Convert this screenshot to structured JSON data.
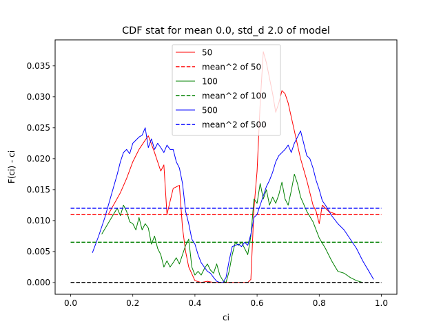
{
  "chart_data": {
    "type": "line",
    "title": "CDF stat for mean 0.0, std_d 2.0 of model",
    "xlabel": "ci",
    "ylabel": "F(ci) - ci",
    "xlim": [
      -0.05,
      1.05
    ],
    "ylim": [
      -0.0019,
      0.0392
    ],
    "xticks": [
      0.0,
      0.2,
      0.4,
      0.6,
      0.8,
      1.0
    ],
    "xtick_labels": [
      "0.0",
      "0.2",
      "0.4",
      "0.6",
      "0.8",
      "1.0"
    ],
    "yticks": [
      0.0,
      0.005,
      0.01,
      0.015,
      0.02,
      0.025,
      0.03,
      0.035
    ],
    "ytick_labels": [
      "0.000",
      "0.005",
      "0.010",
      "0.015",
      "0.020",
      "0.025",
      "0.030",
      "0.035"
    ],
    "legend_position": "top-center",
    "series": [
      {
        "name": "50",
        "color": "#ff0000",
        "style": "solid",
        "x": [
          0.12,
          0.16,
          0.18,
          0.2,
          0.22,
          0.24,
          0.25,
          0.27,
          0.29,
          0.3,
          0.31,
          0.33,
          0.35,
          0.36,
          0.37,
          0.38,
          0.4,
          0.42,
          0.44,
          0.46,
          0.48,
          0.5,
          0.52,
          0.54,
          0.56,
          0.57,
          0.58,
          0.59,
          0.6,
          0.61,
          0.62,
          0.63,
          0.64,
          0.65,
          0.66,
          0.67,
          0.68,
          0.69,
          0.7,
          0.72,
          0.74,
          0.76,
          0.78,
          0.79,
          0.8,
          0.81,
          0.83,
          0.86
        ],
        "y": [
          0.0109,
          0.0145,
          0.0168,
          0.0195,
          0.0215,
          0.023,
          0.0237,
          0.021,
          0.018,
          0.019,
          0.011,
          0.0152,
          0.0157,
          0.0088,
          0.005,
          0.0025,
          0.0003,
          0.0,
          0.0002,
          0.0,
          0.0,
          0.0,
          0.0,
          0.0,
          0.0,
          0.0,
          0.0005,
          0.012,
          0.018,
          0.029,
          0.0373,
          0.0355,
          0.033,
          0.0305,
          0.0275,
          0.029,
          0.031,
          0.0305,
          0.029,
          0.0245,
          0.02,
          0.0165,
          0.0125,
          0.0115,
          0.0095,
          0.0125,
          0.0115,
          0.0109
        ]
      },
      {
        "name": "mean^2 of 50",
        "color": "#ff0000",
        "style": "dashed",
        "x": [
          0.0,
          1.0
        ],
        "y": [
          0.011,
          0.011
        ]
      },
      {
        "name": "100",
        "color": "#008000",
        "style": "solid",
        "x": [
          0.1,
          0.12,
          0.14,
          0.15,
          0.16,
          0.17,
          0.18,
          0.19,
          0.2,
          0.21,
          0.22,
          0.23,
          0.24,
          0.25,
          0.26,
          0.27,
          0.28,
          0.29,
          0.3,
          0.31,
          0.32,
          0.33,
          0.34,
          0.35,
          0.36,
          0.37,
          0.38,
          0.39,
          0.4,
          0.41,
          0.42,
          0.43,
          0.44,
          0.45,
          0.46,
          0.47,
          0.48,
          0.49,
          0.5,
          0.51,
          0.52,
          0.53,
          0.54,
          0.55,
          0.56,
          0.57,
          0.58,
          0.59,
          0.6,
          0.61,
          0.62,
          0.63,
          0.64,
          0.65,
          0.66,
          0.67,
          0.68,
          0.69,
          0.7,
          0.71,
          0.72,
          0.73,
          0.74,
          0.76,
          0.78,
          0.8,
          0.82,
          0.84,
          0.86,
          0.88,
          0.9,
          0.92,
          0.94
        ],
        "y": [
          0.0078,
          0.0095,
          0.0112,
          0.012,
          0.0108,
          0.0125,
          0.0115,
          0.0098,
          0.0095,
          0.0085,
          0.0105,
          0.0085,
          0.0095,
          0.0088,
          0.0062,
          0.0075,
          0.0055,
          0.0045,
          0.0025,
          0.0035,
          0.0025,
          0.0032,
          0.004,
          0.003,
          0.0045,
          0.006,
          0.007,
          0.0025,
          0.0012,
          0.0018,
          0.0012,
          0.0022,
          0.003,
          0.002,
          0.0015,
          0.003,
          0.0012,
          0.0003,
          0.0,
          0.0018,
          0.0045,
          0.0065,
          0.006,
          0.0065,
          0.0055,
          0.0045,
          0.0075,
          0.0135,
          0.0128,
          0.016,
          0.0135,
          0.015,
          0.0125,
          0.0138,
          0.0128,
          0.0142,
          0.0162,
          0.0135,
          0.0125,
          0.0148,
          0.0175,
          0.016,
          0.0138,
          0.0115,
          0.0098,
          0.0072,
          0.0055,
          0.0035,
          0.0018,
          0.0015,
          0.0008,
          0.0003,
          0.0
        ]
      },
      {
        "name": "mean^2 of 100",
        "color": "#008000",
        "style": "dashed",
        "x": [
          0.0,
          1.0
        ],
        "y": [
          0.0065,
          0.0065
        ]
      },
      {
        "name": "500",
        "color": "#0000ff",
        "style": "solid",
        "x": [
          0.07,
          0.09,
          0.11,
          0.13,
          0.15,
          0.16,
          0.17,
          0.18,
          0.19,
          0.2,
          0.21,
          0.22,
          0.23,
          0.24,
          0.25,
          0.26,
          0.27,
          0.28,
          0.29,
          0.3,
          0.31,
          0.32,
          0.33,
          0.34,
          0.35,
          0.36,
          0.37,
          0.38,
          0.39,
          0.4,
          0.41,
          0.42,
          0.43,
          0.44,
          0.45,
          0.46,
          0.47,
          0.48,
          0.49,
          0.5,
          0.51,
          0.52,
          0.53,
          0.54,
          0.55,
          0.56,
          0.57,
          0.58,
          0.59,
          0.6,
          0.61,
          0.62,
          0.63,
          0.64,
          0.65,
          0.66,
          0.67,
          0.68,
          0.69,
          0.7,
          0.71,
          0.72,
          0.73,
          0.74,
          0.75,
          0.76,
          0.77,
          0.78,
          0.79,
          0.8,
          0.81,
          0.82,
          0.84,
          0.86,
          0.88,
          0.9,
          0.92,
          0.94,
          0.96,
          0.975
        ],
        "y": [
          0.0048,
          0.0075,
          0.0105,
          0.014,
          0.0175,
          0.0195,
          0.021,
          0.0215,
          0.0208,
          0.0225,
          0.023,
          0.0235,
          0.0238,
          0.025,
          0.0218,
          0.0232,
          0.0215,
          0.0225,
          0.0218,
          0.021,
          0.0222,
          0.0215,
          0.0215,
          0.0195,
          0.0185,
          0.016,
          0.0115,
          0.0095,
          0.007,
          0.0062,
          0.0045,
          0.0032,
          0.0025,
          0.0018,
          0.0015,
          0.0008,
          0.0002,
          0.0,
          0.0,
          0.0008,
          0.0035,
          0.0058,
          0.006,
          0.0062,
          0.0058,
          0.0065,
          0.006,
          0.0078,
          0.0105,
          0.011,
          0.0125,
          0.014,
          0.0155,
          0.0165,
          0.0178,
          0.0195,
          0.0205,
          0.021,
          0.0215,
          0.0222,
          0.021,
          0.0225,
          0.0235,
          0.0245,
          0.0225,
          0.0205,
          0.02,
          0.0185,
          0.0165,
          0.015,
          0.0132,
          0.0125,
          0.0108,
          0.0095,
          0.0085,
          0.007,
          0.0055,
          0.0035,
          0.0018,
          0.0005
        ]
      },
      {
        "name": "mean^2 of 500",
        "color": "#0000ff",
        "style": "dashed",
        "x": [
          0.0,
          1.0
        ],
        "y": [
          0.012,
          0.012
        ]
      },
      {
        "name": "",
        "color": "#000000",
        "style": "dashed",
        "x": [
          0.0,
          1.0
        ],
        "y": [
          0.0,
          0.0
        ]
      }
    ]
  }
}
